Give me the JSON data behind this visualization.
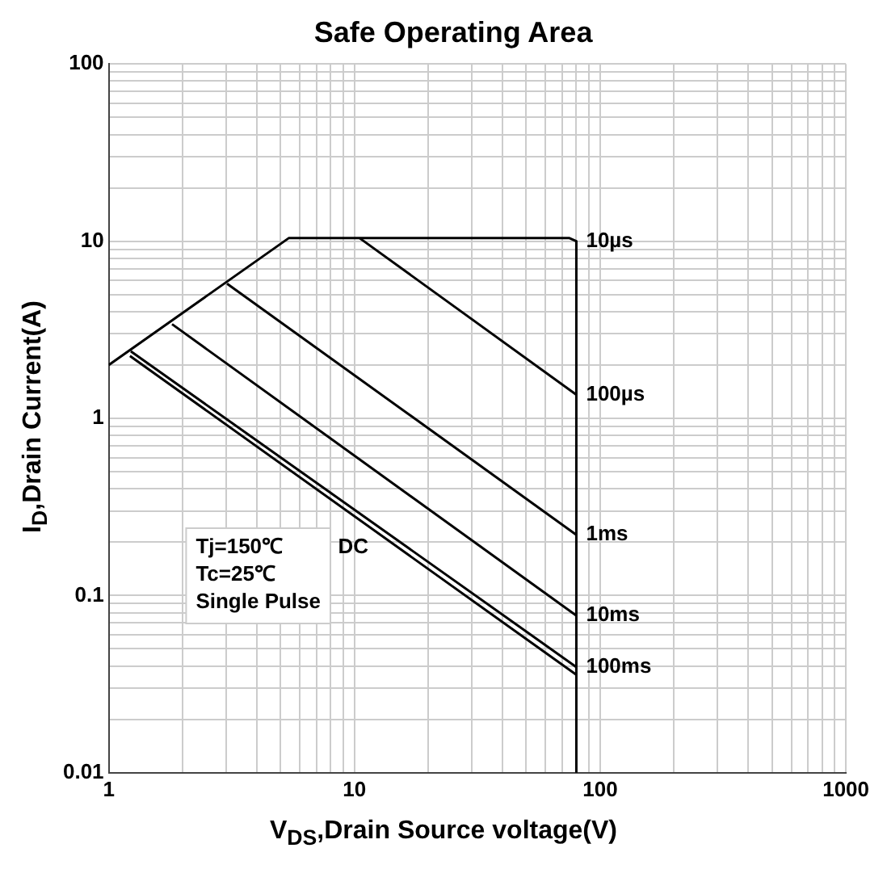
{
  "chart_data": {
    "type": "line",
    "title": "Safe Operating Area",
    "xlabel": "V$_{DS}$,Drain Source voltage(V)",
    "ylabel": "I$_{D}$,Drain Current(A)",
    "series": [
      {
        "name": "10µs",
        "color": "#000000",
        "x": [
          1,
          5.4,
          75,
          80,
          80
        ],
        "values": [
          2,
          10.4,
          10.4,
          10,
          0.01
        ]
      },
      {
        "name": "100µs",
        "color": "#000000",
        "x": [
          10.5,
          80
        ],
        "values": [
          10.4,
          1.36
        ]
      },
      {
        "name": "1ms",
        "color": "#000000",
        "x": [
          3.03,
          80
        ],
        "values": [
          5.76,
          0.22
        ]
      },
      {
        "name": "10ms",
        "color": "#000000",
        "x": [
          1.81,
          80
        ],
        "values": [
          3.4,
          0.077
        ]
      },
      {
        "name": "100ms",
        "color": "#000000",
        "x": [
          1.23,
          80
        ],
        "values": [
          2.39,
          0.0395
        ]
      },
      {
        "name": "DC",
        "color": "#000000",
        "x": [
          1.22,
          80
        ],
        "values": [
          2.25,
          0.0357
        ]
      }
    ],
    "annotations": [
      "Tj=150℃",
      "Tc=25℃",
      "Single Pulse"
    ],
    "log": "xy",
    "xlim": [
      1,
      1000
    ],
    "ylim": [
      0.01,
      100
    ],
    "xticks": [
      1,
      {
        "value": 2,
        "label": null
      },
      {
        "value": 3,
        "label": null
      },
      {
        "value": 4,
        "label": null
      },
      {
        "value": 5,
        "label": null
      },
      {
        "value": 6,
        "label": null
      },
      {
        "value": 7,
        "label": null
      },
      {
        "value": 8,
        "label": null
      },
      {
        "value": 9,
        "label": null
      },
      10,
      {
        "value": 20,
        "label": null
      },
      {
        "value": 30,
        "label": null
      },
      {
        "value": 40,
        "label": null
      },
      {
        "value": 50,
        "label": null
      },
      {
        "value": 60,
        "label": null
      },
      {
        "value": 70,
        "label": null
      },
      {
        "value": 80,
        "label": null
      },
      {
        "value": 90,
        "label": null
      },
      100,
      {
        "value": 200,
        "label": null
      },
      {
        "value": 300,
        "label": null
      },
      {
        "value": 400,
        "label": null
      },
      {
        "value": 500,
        "label": null
      },
      {
        "value": 600,
        "label": null
      },
      {
        "value": 700,
        "label": null
      },
      {
        "value": 800,
        "label": null
      },
      {
        "value": 900,
        "label": null
      },
      1000
    ],
    "yticks": [
      0.01,
      {
        "value": 0.02,
        "label": null
      },
      {
        "value": 0.03,
        "label": null
      },
      {
        "value": 0.04,
        "label": null
      },
      {
        "value": 0.05,
        "label": null
      },
      {
        "value": 0.06,
        "label": null
      },
      {
        "value": 0.07,
        "label": null
      },
      {
        "value": 0.08,
        "label": null
      },
      {
        "value": 0.09,
        "label": null
      },
      0.1,
      {
        "value": 0.2,
        "label": null
      },
      {
        "value": 0.3,
        "label": null
      },
      {
        "value": 0.4,
        "label": null
      },
      {
        "value": 0.5,
        "label": null
      },
      {
        "value": 0.6,
        "label": null
      },
      {
        "value": 0.7,
        "label": null
      },
      {
        "value": 0.8,
        "label": null
      },
      {
        "value": 0.9,
        "label": null
      },
      1,
      {
        "value": 2,
        "label": null
      },
      {
        "value": 3,
        "label": null
      },
      {
        "value": 4,
        "label": null
      },
      {
        "value": 5,
        "label": null
      },
      {
        "value": 6,
        "label": null
      },
      {
        "value": 7,
        "label": null
      },
      {
        "value": 8,
        "label": null
      },
      {
        "value": 9,
        "label": null
      },
      10,
      {
        "value": 20,
        "label": null
      },
      {
        "value": 30,
        "label": null
      },
      {
        "value": 40,
        "label": null
      },
      {
        "value": 50,
        "label": null
      },
      {
        "value": 60,
        "label": null
      },
      {
        "value": 70,
        "label": null
      },
      {
        "value": 80,
        "label": null
      },
      {
        "value": 90,
        "label": null
      },
      100
    ],
    "grid": true,
    "legend": false,
    "marker": "none",
    "line_style": "solid"
  }
}
